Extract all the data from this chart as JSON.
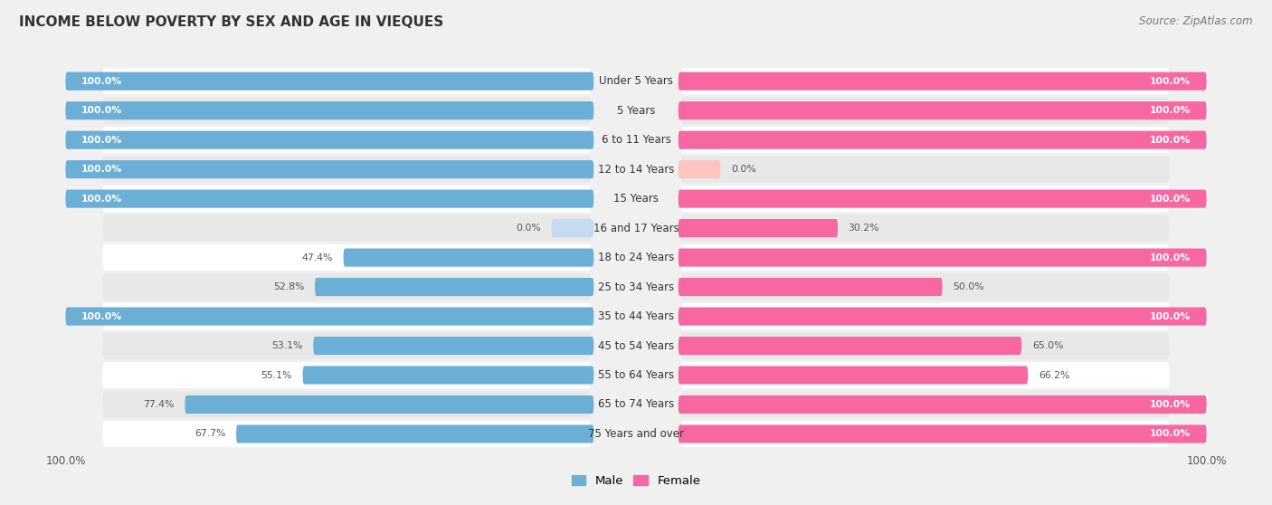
{
  "title": "INCOME BELOW POVERTY BY SEX AND AGE IN VIEQUES",
  "source": "Source: ZipAtlas.com",
  "categories": [
    "Under 5 Years",
    "5 Years",
    "6 to 11 Years",
    "12 to 14 Years",
    "15 Years",
    "16 and 17 Years",
    "18 to 24 Years",
    "25 to 34 Years",
    "35 to 44 Years",
    "45 to 54 Years",
    "55 to 64 Years",
    "65 to 74 Years",
    "75 Years and over"
  ],
  "male": [
    100.0,
    100.0,
    100.0,
    100.0,
    100.0,
    0.0,
    47.4,
    52.8,
    100.0,
    53.1,
    55.1,
    77.4,
    67.7
  ],
  "female": [
    100.0,
    100.0,
    100.0,
    0.0,
    100.0,
    30.2,
    100.0,
    50.0,
    100.0,
    65.0,
    66.2,
    100.0,
    100.0
  ],
  "male_color": "#6baed6",
  "female_color": "#f768a1",
  "male_color_light": "#c6dbef",
  "female_color_light": "#fcc5c0",
  "male_label": "Male",
  "female_label": "Female",
  "bg_color": "#f0f0f0",
  "row_bg_color": "#e8e8e8",
  "row_white_color": "#ffffff",
  "max_val": 100.0,
  "bar_height": 0.62,
  "label_fontsize": 8.5,
  "value_fontsize": 7.8
}
